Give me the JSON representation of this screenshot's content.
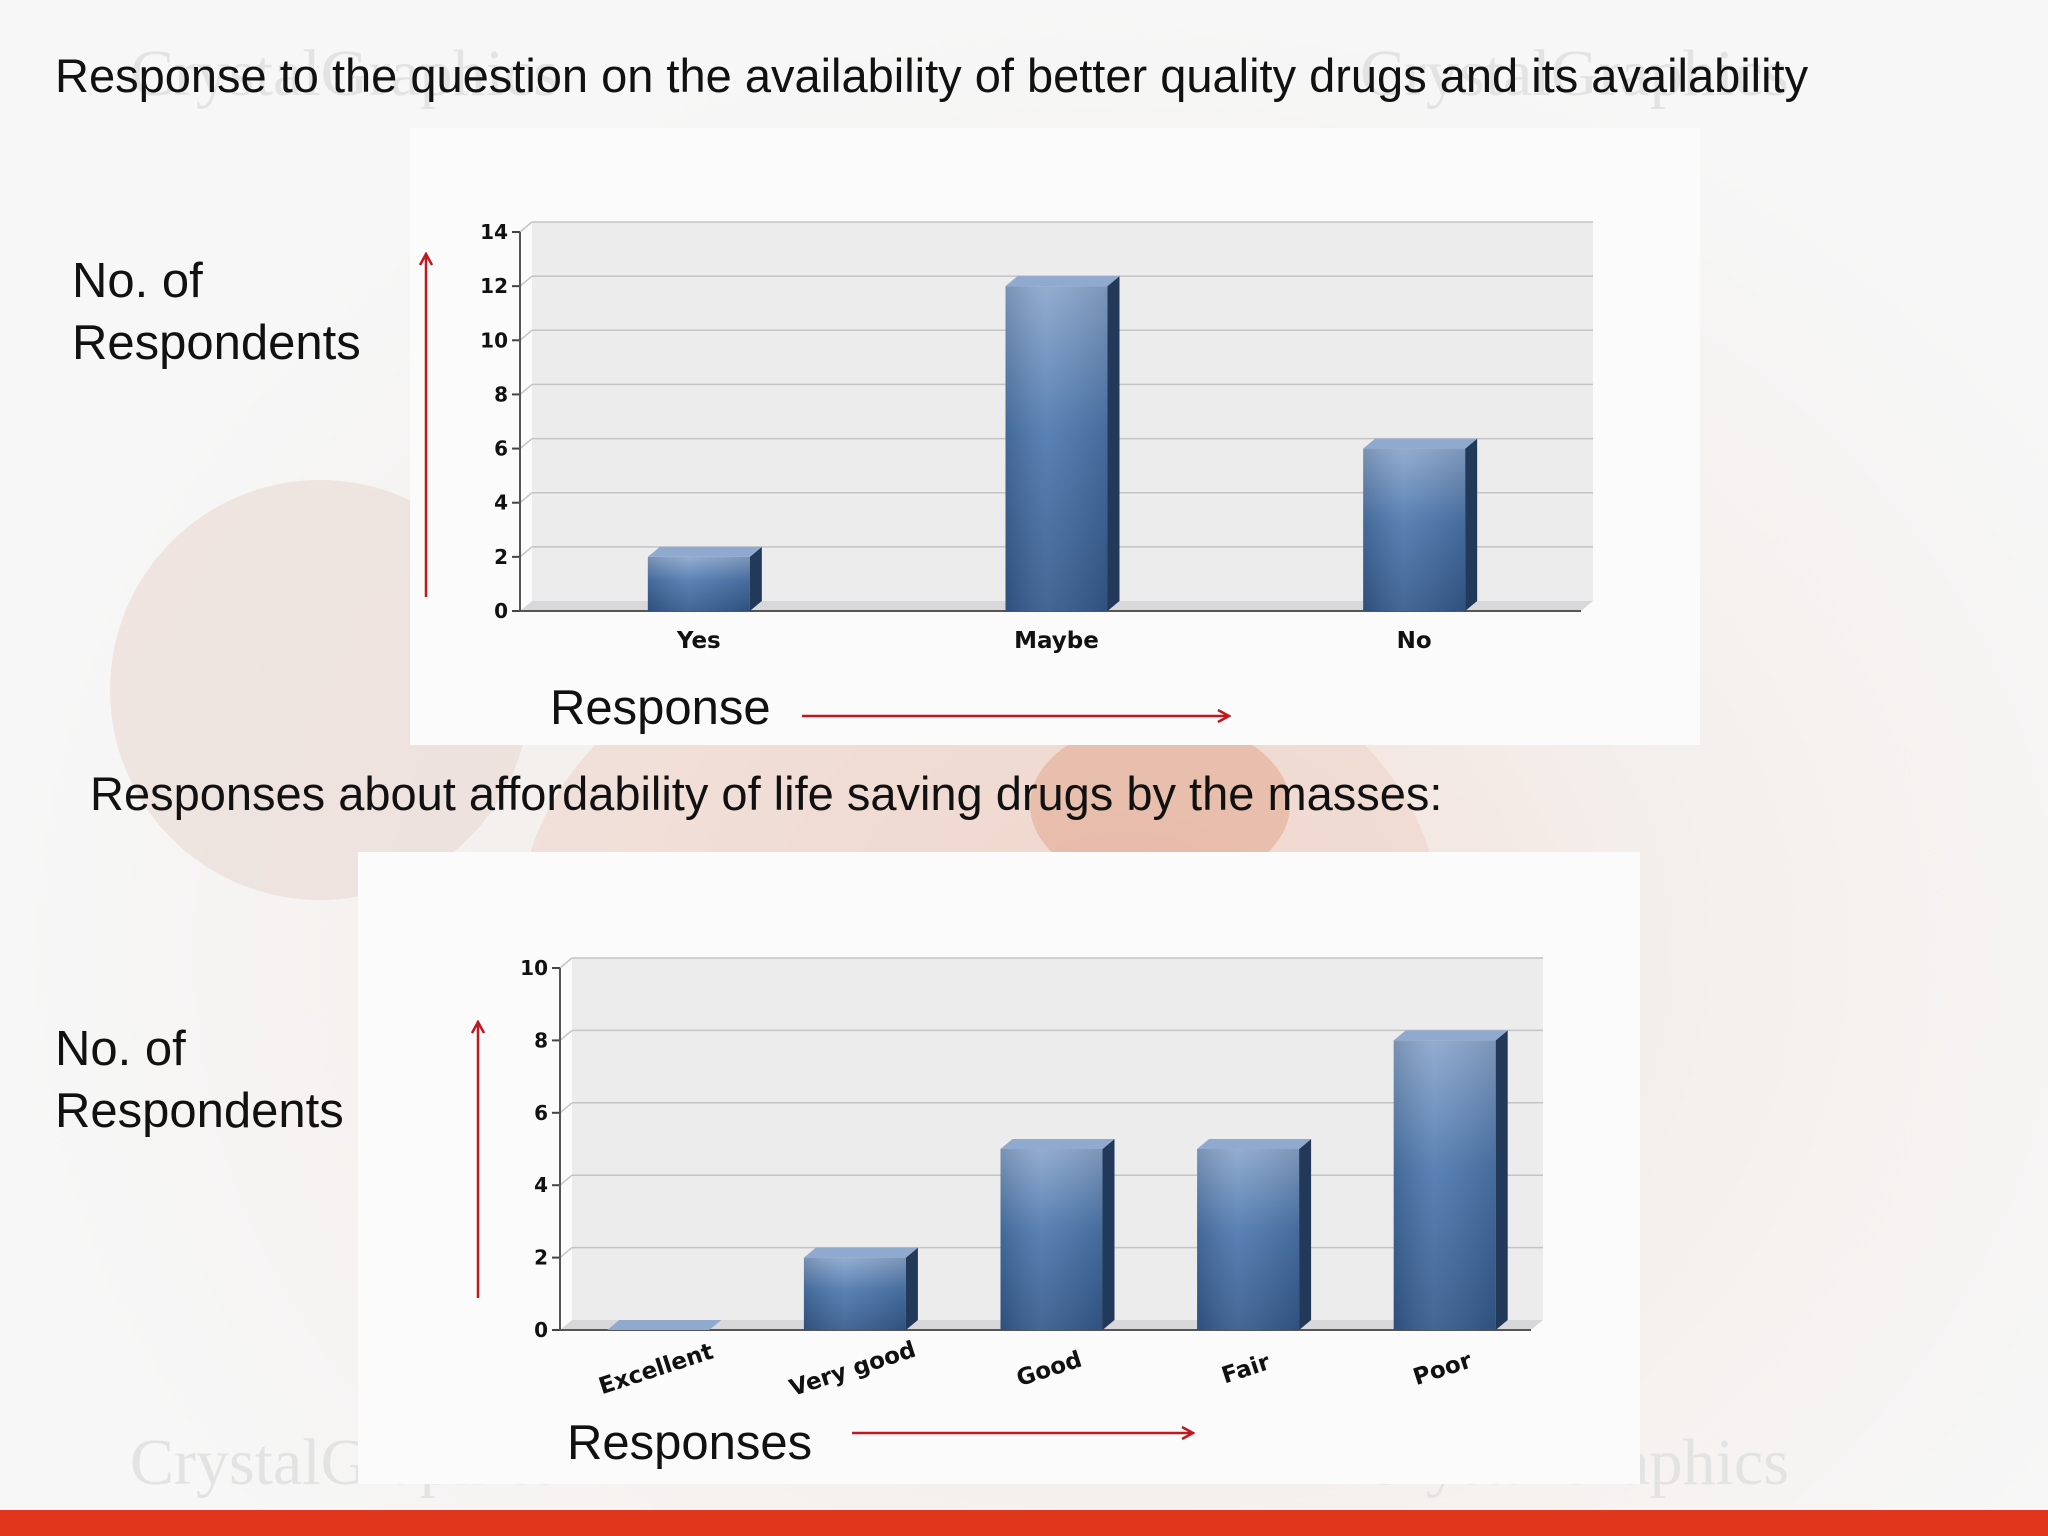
{
  "slide": {
    "title_1": "Response to the question on the availability of better quality drugs and its availability",
    "title_2": "Responses about affordability of life saving drugs by the masses:",
    "y_label_line1": "No. of",
    "y_label_line2": "Respondents",
    "x_label_1": "Response",
    "x_label_2": "Responses",
    "watermark_text": "CrystalGraphics",
    "arrow_color": "#c0181e",
    "footer_color": "#e0361c"
  },
  "chart_data": [
    {
      "type": "bar",
      "categories": [
        "Yes",
        "Maybe",
        "No"
      ],
      "values": [
        2,
        12,
        6
      ],
      "ylim": [
        0,
        14
      ],
      "yticks": [
        0,
        2,
        4,
        6,
        8,
        10,
        12,
        14
      ],
      "title": "Response to the question on the availability of better quality drugs and its availability",
      "xlabel": "Response",
      "ylabel": "No. of Respondents",
      "grid": true,
      "bar_color": "#3f6aa1"
    },
    {
      "type": "bar",
      "categories": [
        "Excellent",
        "Very good",
        "Good",
        "Fair",
        "Poor"
      ],
      "values": [
        0,
        2,
        5,
        5,
        8
      ],
      "ylim": [
        0,
        10
      ],
      "yticks": [
        0,
        2,
        4,
        6,
        8,
        10
      ],
      "title": "Responses about affordability of life saving drugs by the masses:",
      "xlabel": "Responses",
      "ylabel": "No. of Respondents",
      "grid": true,
      "bar_color": "#3f6aa1"
    }
  ]
}
